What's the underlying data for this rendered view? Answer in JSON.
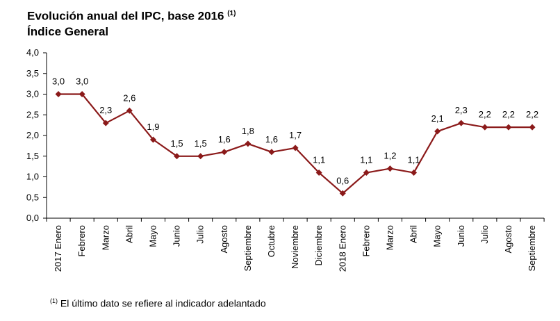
{
  "header": {
    "title": "Evolución anual del IPC, base 2016",
    "title_note": "(1)",
    "subtitle": "Índice General"
  },
  "footnote": {
    "marker": "(1)",
    "text": "El último dato se refiere al indicador adelantado"
  },
  "chart_data": {
    "type": "line",
    "title": "Evolución anual del IPC, base 2016 (1)",
    "subtitle": "Índice General",
    "categories": [
      "2017 Enero",
      "Febrero",
      "Marzo",
      "Abril",
      "Mayo",
      "Junio",
      "Julio",
      "Agosto",
      "Septiembre",
      "Octubre",
      "Noviembre",
      "Diciembre",
      "2018 Enero",
      "Febrero",
      "Marzo",
      "Abril",
      "Mayo",
      "Junio",
      "Julio",
      "Agosto",
      "Septiembre"
    ],
    "values": [
      3.0,
      3.0,
      2.3,
      2.6,
      1.9,
      1.5,
      1.5,
      1.6,
      1.8,
      1.6,
      1.7,
      1.1,
      0.6,
      1.1,
      1.2,
      1.1,
      2.1,
      2.3,
      2.2,
      2.2,
      2.2
    ],
    "data_labels": [
      "3,0",
      "3,0",
      "2,3",
      "2,6",
      "1,9",
      "1,5",
      "1,5",
      "1,6",
      "1,8",
      "1,6",
      "1,7",
      "1,1",
      "0,6",
      "1,1",
      "1,2",
      "1,1",
      "2,1",
      "2,3",
      "2,2",
      "2,2",
      "2,2"
    ],
    "yticks": [
      0.0,
      0.5,
      1.0,
      1.5,
      2.0,
      2.5,
      3.0,
      3.5,
      4.0
    ],
    "ytick_labels": [
      "0,0",
      "0,5",
      "1,0",
      "1,5",
      "2,0",
      "2,5",
      "3,0",
      "3,5",
      "4,0"
    ],
    "ylim": [
      0,
      4
    ],
    "grid": false,
    "legend": "none",
    "series_color": "#8b1a1a",
    "marker": "diamond"
  }
}
